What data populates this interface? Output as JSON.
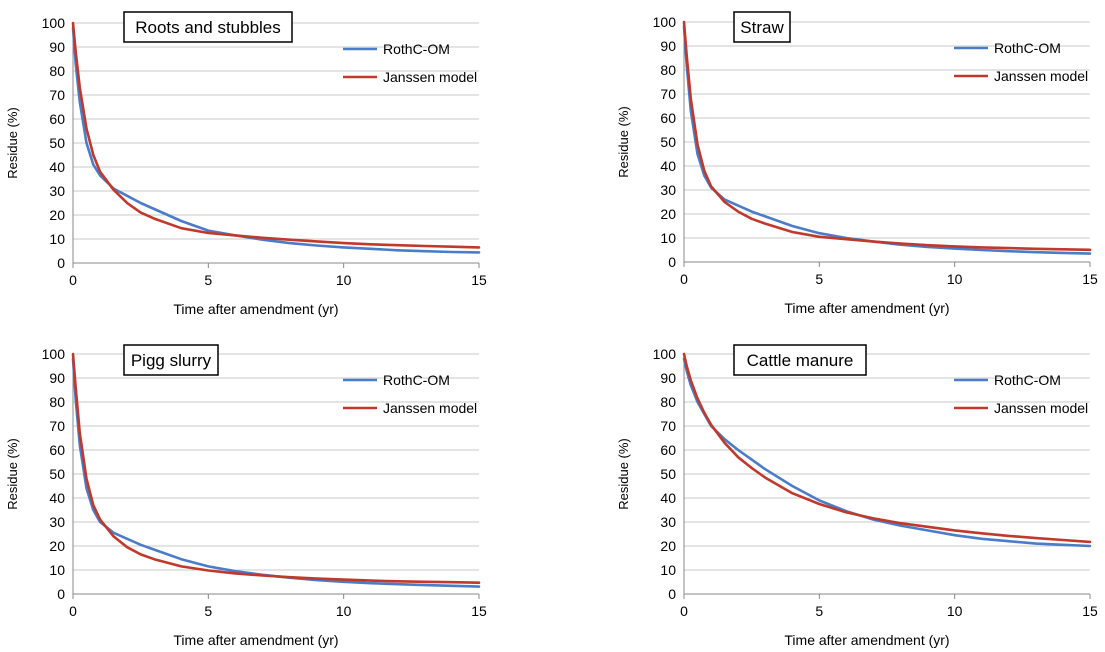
{
  "chart_data": [
    {
      "type": "line",
      "title": "Roots and stubbles",
      "xlabel": "Time after amendment (yr)",
      "ylabel": "Residue (%)",
      "xlim": [
        0,
        15
      ],
      "ylim": [
        0,
        100
      ],
      "xticks": [
        0,
        5,
        10,
        15
      ],
      "yticks": [
        0,
        10,
        20,
        30,
        40,
        50,
        60,
        70,
        80,
        90,
        100
      ],
      "grid": "horizontal",
      "legend": "top-right",
      "series": [
        {
          "name": "RothC-OM",
          "color": "#4a7cc9",
          "x": [
            0,
            0.1,
            0.25,
            0.5,
            0.75,
            1,
            1.5,
            2,
            2.5,
            3,
            4,
            5,
            6,
            7,
            8,
            9,
            10,
            11,
            12,
            13,
            14,
            15
          ],
          "y": [
            98,
            83,
            67,
            50,
            41,
            36.5,
            31,
            28,
            25,
            22.5,
            17.5,
            13.5,
            11.5,
            9.7,
            8.3,
            7.3,
            6.5,
            5.9,
            5.3,
            4.9,
            4.6,
            4.4
          ]
        },
        {
          "name": "Janssen model",
          "color": "#c0392b",
          "x": [
            0,
            0.1,
            0.25,
            0.5,
            0.75,
            1,
            1.5,
            2,
            2.5,
            3,
            4,
            5,
            6,
            7,
            8,
            9,
            10,
            11,
            12,
            13,
            14,
            15
          ],
          "y": [
            100,
            88,
            73,
            56,
            45,
            38,
            30.5,
            25,
            21,
            18.5,
            14.5,
            12.5,
            11.5,
            10.5,
            9.7,
            9,
            8.3,
            7.8,
            7.4,
            7.1,
            6.8,
            6.5
          ]
        }
      ]
    },
    {
      "type": "line",
      "title": "Straw",
      "xlabel": "Time after amendment (yr)",
      "ylabel": "Residue (%)",
      "xlim": [
        0,
        15
      ],
      "ylim": [
        0,
        100
      ],
      "xticks": [
        0,
        5,
        10,
        15
      ],
      "yticks": [
        0,
        10,
        20,
        30,
        40,
        50,
        60,
        70,
        80,
        90,
        100
      ],
      "grid": "horizontal",
      "legend": "top-right",
      "series": [
        {
          "name": "RothC-OM",
          "color": "#4a7cc9",
          "x": [
            0,
            0.1,
            0.25,
            0.5,
            0.75,
            1,
            1.5,
            2,
            2.5,
            3,
            4,
            5,
            6,
            7,
            8,
            9,
            10,
            11,
            12,
            13,
            14,
            15
          ],
          "y": [
            98,
            82,
            63,
            45,
            36,
            31,
            26,
            23.5,
            21,
            19,
            15,
            12,
            10,
            8.5,
            7.2,
            6.3,
            5.6,
            5,
            4.5,
            4.1,
            3.8,
            3.5
          ]
        },
        {
          "name": "Janssen model",
          "color": "#c0392b",
          "x": [
            0,
            0.1,
            0.25,
            0.5,
            0.75,
            1,
            1.5,
            2,
            2.5,
            3,
            4,
            5,
            6,
            7,
            8,
            9,
            10,
            11,
            12,
            13,
            14,
            15
          ],
          "y": [
            100,
            86,
            68,
            49,
            38,
            31.5,
            25,
            21,
            18,
            16,
            12.5,
            10.5,
            9.5,
            8.5,
            7.7,
            7,
            6.5,
            6.1,
            5.8,
            5.5,
            5.3,
            5.1
          ]
        }
      ]
    },
    {
      "type": "line",
      "title": "Pigg slurry",
      "xlabel": "Time after amendment (yr)",
      "ylabel": "Residue (%)",
      "xlim": [
        0,
        15
      ],
      "ylim": [
        0,
        100
      ],
      "xticks": [
        0,
        5,
        10,
        15
      ],
      "yticks": [
        0,
        10,
        20,
        30,
        40,
        50,
        60,
        70,
        80,
        90,
        100
      ],
      "grid": "horizontal",
      "legend": "top-right",
      "series": [
        {
          "name": "RothC-OM",
          "color": "#4a7cc9",
          "x": [
            0,
            0.1,
            0.25,
            0.5,
            0.75,
            1,
            1.5,
            2,
            2.5,
            3,
            4,
            5,
            6,
            7,
            8,
            9,
            10,
            11,
            12,
            13,
            14,
            15
          ],
          "y": [
            98,
            81,
            62,
            44,
            35,
            30,
            25.5,
            23,
            20.5,
            18.5,
            14.5,
            11.5,
            9.5,
            8,
            6.8,
            5.8,
            5.1,
            4.5,
            4.1,
            3.7,
            3.4,
            3.1
          ]
        },
        {
          "name": "Janssen model",
          "color": "#c0392b",
          "x": [
            0,
            0.1,
            0.25,
            0.5,
            0.75,
            1,
            1.5,
            2,
            2.5,
            3,
            4,
            5,
            6,
            7,
            8,
            9,
            10,
            11,
            12,
            13,
            14,
            15
          ],
          "y": [
            100,
            86,
            67,
            48,
            37,
            31,
            24,
            19.5,
            16.5,
            14.5,
            11.5,
            9.8,
            8.6,
            7.7,
            7,
            6.4,
            6,
            5.6,
            5.3,
            5.1,
            4.9,
            4.7
          ]
        }
      ]
    },
    {
      "type": "line",
      "title": "Cattle manure",
      "xlabel": "Time after amendment (yr)",
      "ylabel": "Residue (%)",
      "xlim": [
        0,
        15
      ],
      "ylim": [
        0,
        100
      ],
      "xticks": [
        0,
        5,
        10,
        15
      ],
      "yticks": [
        0,
        10,
        20,
        30,
        40,
        50,
        60,
        70,
        80,
        90,
        100
      ],
      "grid": "horizontal",
      "legend": "top-right",
      "series": [
        {
          "name": "RothC-OM",
          "color": "#4a7cc9",
          "x": [
            0,
            0.1,
            0.25,
            0.5,
            0.75,
            1,
            1.5,
            2,
            2.5,
            3,
            4,
            5,
            6,
            7,
            8,
            9,
            10,
            11,
            12,
            13,
            14,
            15
          ],
          "y": [
            98,
            93,
            87,
            80,
            75,
            70,
            64.5,
            60,
            56,
            52,
            45,
            39,
            34.5,
            31,
            28.5,
            26.5,
            24.5,
            23,
            22,
            21,
            20.5,
            20
          ]
        },
        {
          "name": "Janssen model",
          "color": "#c0392b",
          "x": [
            0,
            0.1,
            0.25,
            0.5,
            0.75,
            1,
            1.5,
            2,
            2.5,
            3,
            4,
            5,
            6,
            7,
            8,
            9,
            10,
            11,
            12,
            13,
            14,
            15
          ],
          "y": [
            100,
            95,
            89,
            81.5,
            75.5,
            70.5,
            63,
            57,
            52.5,
            48.5,
            42,
            37.5,
            34,
            31.5,
            29.5,
            28,
            26.5,
            25.3,
            24.2,
            23.3,
            22.5,
            21.7
          ]
        }
      ]
    }
  ]
}
